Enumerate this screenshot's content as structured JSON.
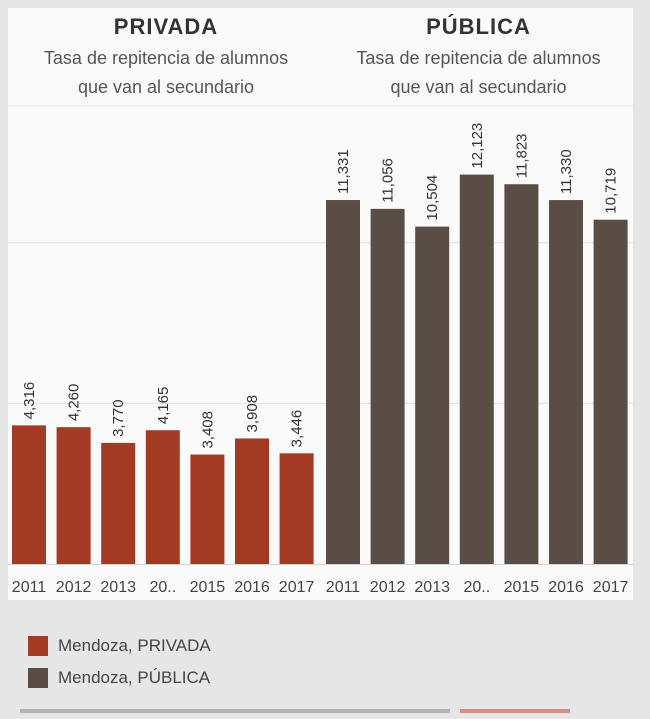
{
  "colors": {
    "privada": "#a23a24",
    "publica": "#5a4d45",
    "grid": "#e3e3e3",
    "panel": "#fafafa"
  },
  "chart_data": {
    "type": "bar",
    "panels": [
      {
        "key": "privada",
        "title": "PRIVADA",
        "subtitle_lines": [
          "Tasa de repitencia de alumnos",
          "que van al secundario"
        ],
        "categories": [
          "2011",
          "2012",
          "2013",
          "20..",
          "2015",
          "2016",
          "2017"
        ],
        "values": [
          4316,
          4260,
          3770,
          4165,
          3408,
          3908,
          3446
        ],
        "value_labels": [
          "4,316",
          "4,260",
          "3,770",
          "4,165",
          "3,408",
          "3,908",
          "3,446"
        ]
      },
      {
        "key": "publica",
        "title": "PÚBLICA",
        "subtitle_lines": [
          "Tasa de repitencia de alumnos",
          "que van al secundario"
        ],
        "categories": [
          "2011",
          "2012",
          "2013",
          "20..",
          "2015",
          "2016",
          "2017"
        ],
        "values": [
          11331,
          11056,
          10504,
          12123,
          11823,
          11330,
          10719
        ],
        "value_labels": [
          "11,331",
          "11,056",
          "10,504",
          "12,123",
          "11,823",
          "11,330",
          "10,719"
        ]
      }
    ],
    "ylim": [
      0,
      14000
    ],
    "gridlines": [
      5000,
      10000
    ],
    "legend": [
      {
        "label": "Mendoza, PRIVADA",
        "color": "#a23a24"
      },
      {
        "label": "Mendoza, PÚBLICA",
        "color": "#5a4d45"
      }
    ]
  }
}
